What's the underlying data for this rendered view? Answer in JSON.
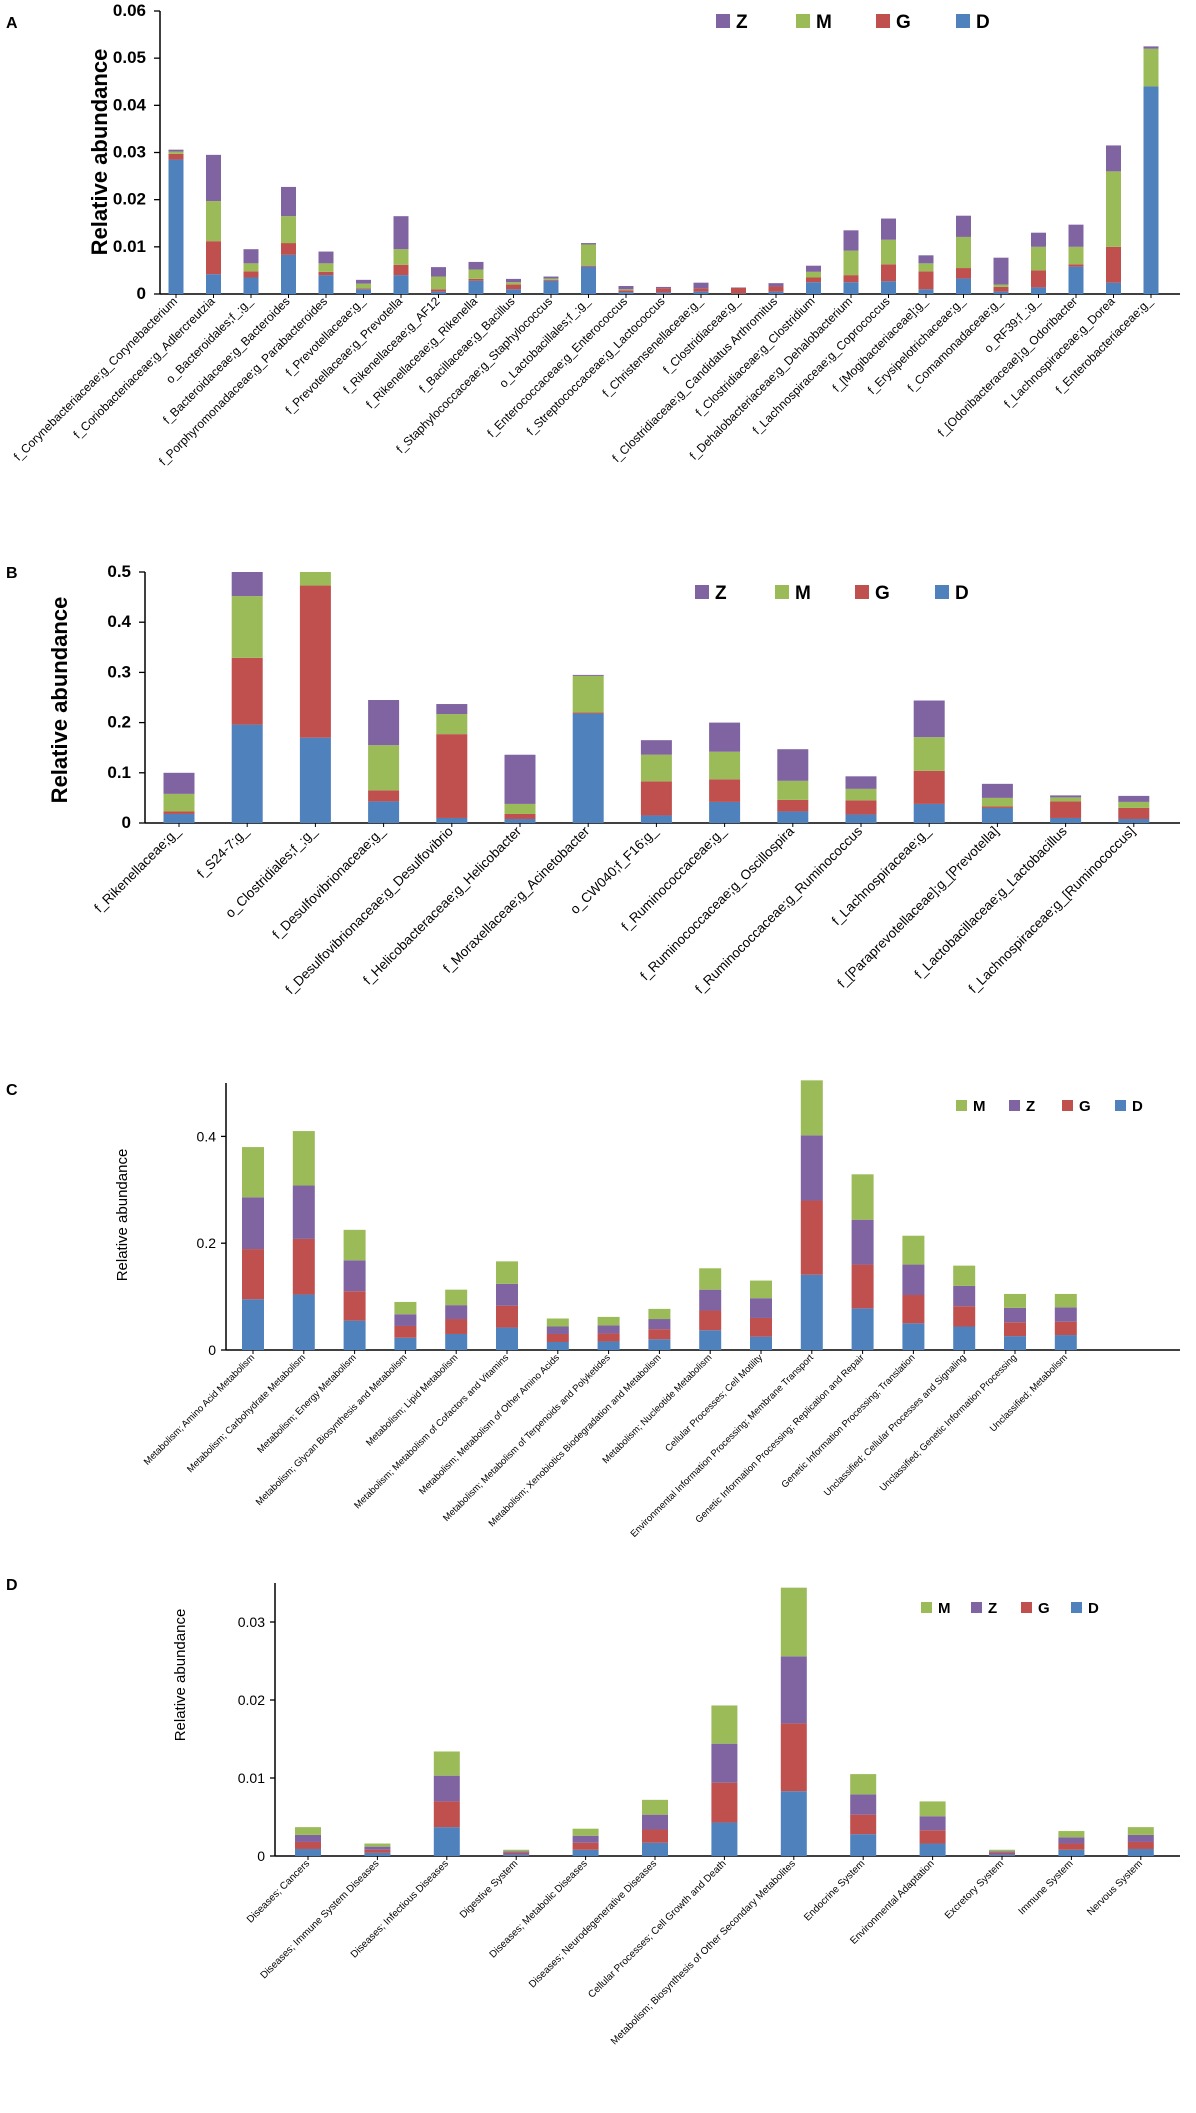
{
  "colors": {
    "Z": "#8064a2",
    "M": "#9bbb59",
    "G": "#c0504d",
    "D": "#4f81bd"
  },
  "chart_data": [
    {
      "panel": "A",
      "type": "bar",
      "stacked": true,
      "title": "",
      "xlabel": "",
      "ylabel": "Relative abundance",
      "ylim": [
        0,
        0.06
      ],
      "yticks": [
        "0",
        "0.01",
        "0.02",
        "0.03",
        "0.04",
        "0.05",
        "0.06"
      ],
      "legend": [
        "Z",
        "M",
        "G",
        "D"
      ],
      "categories": [
        "f_Corynebacteriaceae;g_Corynebacterium",
        "f_Coriobacteriaceae;g_Adlercreutzia",
        "o_Bacteroidales;f_;g_",
        "f_Bacteroidaceae;g_Bacteroides",
        "f_Porphyromonadaceae;g_Parabacteroides",
        "f_Prevotellaceae;g_",
        "f_Prevotellaceae;g_Prevotella",
        "f_Rikenellaceae;g_AF12",
        "f_Rikenellaceae;g_Rikenella",
        "f_Bacillaceae;g_Bacillus",
        "f_Staphylococcaceae;g_Staphylococcus",
        "o_Lactobacillales;f_;g_",
        "f_Enterococcaceae;g_Enterococcus",
        "f_Streptococcaceae;g_Lactococcus",
        "f_Christensenellaceae;g_",
        "f_Clostridiaceae;g_",
        "f_Clostridiaceae;g_Candidatus Arthromitus",
        "f_Clostridiaceae;g_Clostridium",
        "f_Dehalobacteriaceae;g_Dehalobacterium",
        "f_Lachnospiraceae;g_Coprococcus",
        "f_[Mogibacteriaceae];g_",
        "f_Erysipelotrichaceae;g_",
        "f_Comamonadaceae;g_",
        "o_RF39;f_;g_",
        "f_[Odoribacteraceae];g_Odoribacter",
        "f_Lachnospiraceae;g_Dorea",
        "f_Enterobacteriaceae;g_"
      ],
      "series": [
        {
          "name": "D",
          "values": [
            0.0285,
            0.0042,
            0.0035,
            0.0083,
            0.004,
            0.001,
            0.004,
            0.0005,
            0.0028,
            0.001,
            0.0028,
            0.0058,
            0.0004,
            0.0003,
            0.0005,
            0.0001,
            0.0005,
            0.0025,
            0.0025,
            0.0027,
            0.001,
            0.0033,
            0.0005,
            0.0014,
            0.0058,
            0.0024,
            0.044
          ]
        },
        {
          "name": "G",
          "values": [
            0.0012,
            0.007,
            0.0013,
            0.0025,
            0.0007,
            0.0002,
            0.0022,
            0.0005,
            0.0004,
            0.001,
            0.0002,
            0.0002,
            0.0004,
            0.0009,
            0.0007,
            0.0012,
            0.0011,
            0.001,
            0.0015,
            0.0036,
            0.0038,
            0.0022,
            0.001,
            0.0036,
            0.0005,
            0.0076,
            0.0
          ]
        },
        {
          "name": "M",
          "values": [
            0.0005,
            0.0085,
            0.0017,
            0.0057,
            0.0018,
            0.001,
            0.0033,
            0.0027,
            0.002,
            0.0005,
            0.0003,
            0.0045,
            0.0002,
            0.0,
            0.0,
            0.0,
            0.0,
            0.0012,
            0.0052,
            0.0052,
            0.0017,
            0.0066,
            0.0005,
            0.005,
            0.0037,
            0.016,
            0.008
          ]
        },
        {
          "name": "Z",
          "values": [
            0.0004,
            0.0098,
            0.003,
            0.0062,
            0.0025,
            0.0008,
            0.007,
            0.002,
            0.0016,
            0.0007,
            0.0004,
            0.0003,
            0.0007,
            0.0003,
            0.0012,
            0.0001,
            0.0007,
            0.0013,
            0.0043,
            0.0045,
            0.0017,
            0.0045,
            0.0057,
            0.003,
            0.0047,
            0.0055,
            0.0005
          ]
        }
      ]
    },
    {
      "panel": "B",
      "type": "bar",
      "stacked": true,
      "title": "",
      "xlabel": "",
      "ylabel": "Relative abundance",
      "ylim": [
        0,
        0.5
      ],
      "yticks": [
        "0",
        "0.1",
        "0.2",
        "0.3",
        "0.4",
        "0.5"
      ],
      "legend": [
        "Z",
        "M",
        "G",
        "D"
      ],
      "categories": [
        "f_Rikenellaceae;g_",
        "f_S24-7;g_",
        "o_Clostridiales;f_;g_",
        "f_Desulfovibrionaceae;g_",
        "f_Desulfovibrionaceae;g_Desulfovibrio",
        "f_Helicobacteraceae;g_Helicobacter",
        "f_Moraxellaceae;g_Acinetobacter",
        "o_CW040;f_F16;g_",
        "f_Ruminococcaceae;g_",
        "f_Ruminococcaceae;g_Oscillospira",
        "f_Ruminococcaceae;g_Ruminococcus",
        "f_Lachnospiraceae;g_",
        "f_[Paraprevotellaceae];g_[Prevotella]",
        "f_Lactobacillaceae;g_Lactobacillus",
        "f_Lachnospiraceae;g_[Ruminococcus]"
      ],
      "series": [
        {
          "name": "D",
          "values": [
            0.018,
            0.196,
            0.17,
            0.043,
            0.01,
            0.008,
            0.218,
            0.015,
            0.042,
            0.023,
            0.017,
            0.038,
            0.03,
            0.01,
            0.008
          ]
        },
        {
          "name": "G",
          "values": [
            0.005,
            0.133,
            0.303,
            0.022,
            0.167,
            0.01,
            0.002,
            0.068,
            0.045,
            0.023,
            0.028,
            0.066,
            0.003,
            0.033,
            0.022
          ]
        },
        {
          "name": "M",
          "values": [
            0.035,
            0.123,
            0.027,
            0.09,
            0.04,
            0.02,
            0.073,
            0.053,
            0.055,
            0.038,
            0.023,
            0.067,
            0.017,
            0.008,
            0.012
          ]
        },
        {
          "name": "Z",
          "values": [
            0.042,
            0.048,
            0.0,
            0.09,
            0.02,
            0.098,
            0.002,
            0.029,
            0.058,
            0.063,
            0.025,
            0.073,
            0.028,
            0.004,
            0.012
          ]
        }
      ]
    },
    {
      "panel": "C",
      "type": "bar",
      "stacked": true,
      "title": "",
      "xlabel": "",
      "ylabel": "Relative abundance",
      "ylim": [
        0,
        0.5
      ],
      "yticks": [
        "0",
        "0.2",
        "0.4"
      ],
      "legend": [
        "M",
        "Z",
        "G",
        "D"
      ],
      "categories": [
        "Metabolism; Amino Acid Metabolism",
        "Metabolism; Carbohydrate Metabolism",
        "Metabolism; Energy Metabolism",
        "Metabolism; Glycan Biosynthesis and Metabolism",
        "Metabolism; Lipid Metabolism",
        "Metabolism; Metabolism of Cofactors and Vitamins",
        "Metabolism; Metabolism of Other Amino Acids",
        "Metabolism; Metabolism of Terpenoids and Polyketides",
        "Metabolism; Xenobiotics Biodegradation and Metabolism",
        "Metabolism; Nucleotide Metabolism",
        "Cellular Processes; Cell Motility",
        "Environmental Information Processing; Membrane Transport",
        "Genetic Information Processing; Replication and Repair",
        "Genetic Information Processing; Translation",
        "Unclassified; Cellular Processes and Signaling",
        "Unclassified; Genetic Information Processing",
        "Unclassified; Metabolism"
      ],
      "series": [
        {
          "name": "D",
          "values": [
            0.095,
            0.104,
            0.055,
            0.023,
            0.03,
            0.042,
            0.015,
            0.016,
            0.02,
            0.037,
            0.025,
            0.141,
            0.078,
            0.05,
            0.044,
            0.026,
            0.028
          ]
        },
        {
          "name": "G",
          "values": [
            0.094,
            0.104,
            0.055,
            0.022,
            0.028,
            0.041,
            0.015,
            0.015,
            0.019,
            0.037,
            0.035,
            0.139,
            0.082,
            0.053,
            0.038,
            0.026,
            0.025
          ]
        },
        {
          "name": "Z",
          "values": [
            0.097,
            0.1,
            0.058,
            0.022,
            0.026,
            0.041,
            0.014,
            0.015,
            0.019,
            0.039,
            0.037,
            0.122,
            0.084,
            0.057,
            0.038,
            0.027,
            0.027
          ]
        },
        {
          "name": "M",
          "values": [
            0.094,
            0.102,
            0.057,
            0.023,
            0.029,
            0.042,
            0.015,
            0.016,
            0.019,
            0.04,
            0.033,
            0.103,
            0.085,
            0.054,
            0.038,
            0.026,
            0.025
          ]
        }
      ]
    },
    {
      "panel": "D",
      "type": "bar",
      "stacked": true,
      "title": "",
      "xlabel": "",
      "ylabel": "Relative abundance",
      "ylim": [
        0,
        0.035
      ],
      "yticks": [
        "0",
        "0.01",
        "0.02",
        "0.03"
      ],
      "legend": [
        "M",
        "Z",
        "G",
        "D"
      ],
      "categories": [
        "Diseases; Cancers",
        "Diseases; Immune System Diseases",
        "Diseases; Infectious Diseases",
        "Digestive System",
        "Diseases; Metabolic Diseases",
        "Diseases; Neurodegenerative Diseases",
        "Cellular Processes; Cell Growth and Death",
        "Metabolism; Biosynthesis of Other Secondary Metabolites",
        "Endocrine System",
        "Environmental Adaptation",
        "Excretory System",
        "Immune System",
        "Nervous System"
      ],
      "series": [
        {
          "name": "D",
          "values": [
            0.0009,
            0.0004,
            0.0037,
            0.0002,
            0.0008,
            0.0017,
            0.0043,
            0.0083,
            0.0028,
            0.0016,
            0.0002,
            0.0008,
            0.0009
          ]
        },
        {
          "name": "G",
          "values": [
            0.0009,
            0.0004,
            0.0033,
            0.0002,
            0.0009,
            0.0017,
            0.0051,
            0.0087,
            0.0025,
            0.0017,
            0.0002,
            0.0008,
            0.0009
          ]
        },
        {
          "name": "Z",
          "values": [
            0.0009,
            0.0004,
            0.0033,
            0.0002,
            0.0009,
            0.0019,
            0.005,
            0.0086,
            0.0026,
            0.0018,
            0.0002,
            0.0008,
            0.0009
          ]
        },
        {
          "name": "M",
          "values": [
            0.001,
            0.0004,
            0.0031,
            0.0002,
            0.0009,
            0.0019,
            0.0049,
            0.0088,
            0.0026,
            0.0019,
            0.0002,
            0.0008,
            0.001
          ]
        }
      ]
    }
  ]
}
